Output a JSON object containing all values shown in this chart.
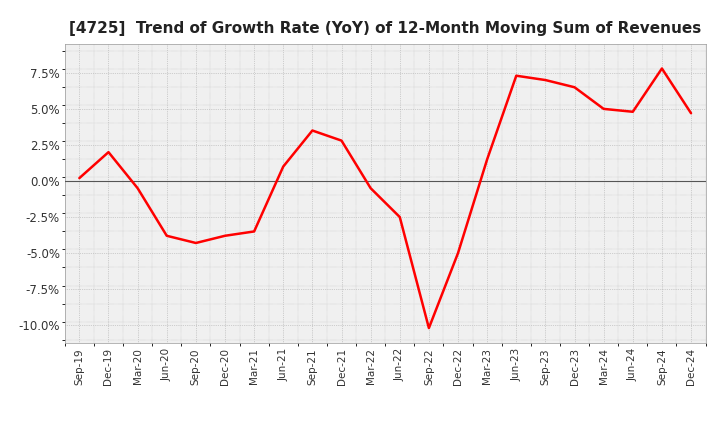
{
  "title": "[4725]  Trend of Growth Rate (YoY) of 12-Month Moving Sum of Revenues",
  "title_fontsize": 11,
  "line_color": "#ff0000",
  "background_color": "#ffffff",
  "plot_bg_color": "#f0f0f0",
  "grid_color": "#aaaaaa",
  "zero_line_color": "#555555",
  "ylim": [
    -11.25,
    9.5
  ],
  "yticks": [
    -10.0,
    -7.5,
    -5.0,
    -2.5,
    0.0,
    2.5,
    5.0,
    7.5
  ],
  "x_labels": [
    "Sep-19",
    "Dec-19",
    "Mar-20",
    "Jun-20",
    "Sep-20",
    "Dec-20",
    "Mar-21",
    "Jun-21",
    "Sep-21",
    "Dec-21",
    "Mar-22",
    "Jun-22",
    "Sep-22",
    "Dec-22",
    "Mar-23",
    "Jun-23",
    "Sep-23",
    "Dec-23",
    "Mar-24",
    "Jun-24",
    "Sep-24",
    "Dec-24"
  ],
  "values": [
    0.2,
    2.0,
    -0.5,
    -3.8,
    -4.3,
    -3.8,
    -3.5,
    1.0,
    3.5,
    2.8,
    -0.5,
    -2.5,
    -10.2,
    -5.0,
    1.5,
    7.3,
    7.0,
    6.5,
    5.0,
    4.8,
    7.8,
    4.7
  ]
}
